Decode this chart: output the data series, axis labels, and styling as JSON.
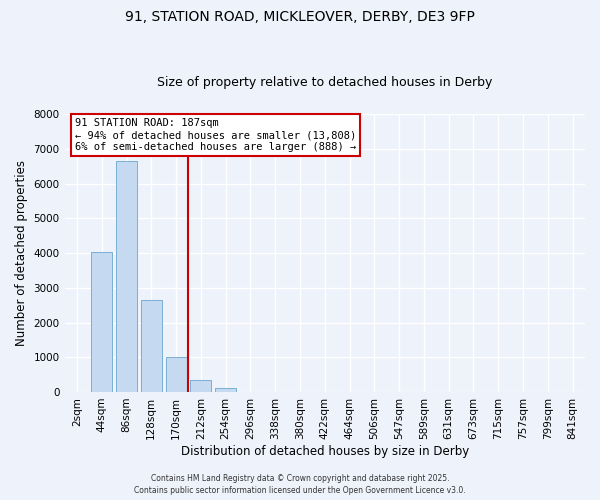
{
  "title": "91, STATION ROAD, MICKLEOVER, DERBY, DE3 9FP",
  "subtitle": "Size of property relative to detached houses in Derby",
  "xlabel": "Distribution of detached houses by size in Derby",
  "ylabel": "Number of detached properties",
  "bar_labels": [
    "2sqm",
    "44sqm",
    "86sqm",
    "128sqm",
    "170sqm",
    "212sqm",
    "254sqm",
    "296sqm",
    "338sqm",
    "380sqm",
    "422sqm",
    "464sqm",
    "506sqm",
    "547sqm",
    "589sqm",
    "631sqm",
    "673sqm",
    "715sqm",
    "757sqm",
    "799sqm",
    "841sqm"
  ],
  "bar_values": [
    0,
    4020,
    6650,
    2660,
    1000,
    340,
    110,
    0,
    0,
    0,
    0,
    0,
    0,
    0,
    0,
    0,
    0,
    0,
    0,
    0,
    0
  ],
  "bar_color": "#c5d9f0",
  "bar_edgecolor": "#7bafd4",
  "vline_x": 4.5,
  "vline_color": "#cc0000",
  "ylim": [
    0,
    8000
  ],
  "yticks": [
    0,
    1000,
    2000,
    3000,
    4000,
    5000,
    6000,
    7000,
    8000
  ],
  "annotation_box_text": "91 STATION ROAD: 187sqm\n← 94% of detached houses are smaller (13,808)\n6% of semi-detached houses are larger (888) →",
  "background_color": "#eef2fb",
  "grid_color": "#ffffff",
  "footer_line1": "Contains HM Land Registry data © Crown copyright and database right 2025.",
  "footer_line2": "Contains public sector information licensed under the Open Government Licence v3.0.",
  "title_fontsize": 10,
  "subtitle_fontsize": 9,
  "xlabel_fontsize": 8.5,
  "ylabel_fontsize": 8.5,
  "tick_fontsize": 7.5,
  "annot_fontsize": 7.5,
  "footer_fontsize": 5.5
}
